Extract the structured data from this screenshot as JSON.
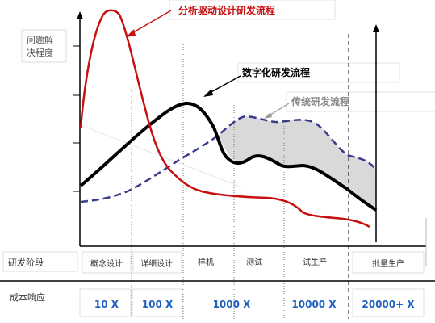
{
  "y_axis_label": [
    "问题解",
    "决程度"
  ],
  "labels": {
    "driven": "分析驱动设计研发流程",
    "digital": "数字化研发流程",
    "traditional": "传统研发流程"
  },
  "row_labels": {
    "phase": "研发阶段",
    "cost": "成本响应"
  },
  "phases": [
    "概念设计",
    "详细设计",
    "样机",
    "测试",
    "试生产",
    "批量生产"
  ],
  "costs": [
    "10 X",
    "100 X",
    "1000 X",
    "10000 X",
    "20000+ X"
  ],
  "colors": {
    "driven": "#c81010",
    "digital": "#000000",
    "traditional": "#3a3a8a",
    "fill": "#d9d9d9",
    "cost_text": "#2060c0"
  }
}
